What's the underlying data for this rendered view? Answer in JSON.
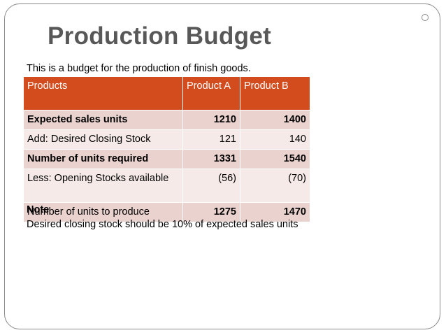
{
  "slide": {
    "title": "Production Budget",
    "intro": "This is a budget for the production of finish goods."
  },
  "table": {
    "headers": [
      "Products",
      "Product A",
      "Product B"
    ],
    "rows": [
      {
        "label": "Expected sales units",
        "a": "1210",
        "b": "1400"
      },
      {
        "label": "Add: Desired Closing Stock",
        "a": "121",
        "b": "140"
      },
      {
        "label": "Number of units required",
        "a": "1331",
        "b": "1540"
      },
      {
        "label": "Less: Opening Stocks available",
        "a": "(56)",
        "b": "(70)"
      },
      {
        "label": "Number of units to produce",
        "a": "1275",
        "b": "1470"
      }
    ]
  },
  "note": {
    "heading": "Note",
    "text": "Desired closing stock should be 10% of expected sales units"
  },
  "colors": {
    "header": "#d34c1e",
    "row_dark": "#ead2ce",
    "row_light": "#f5eae8",
    "title": "#585858"
  }
}
